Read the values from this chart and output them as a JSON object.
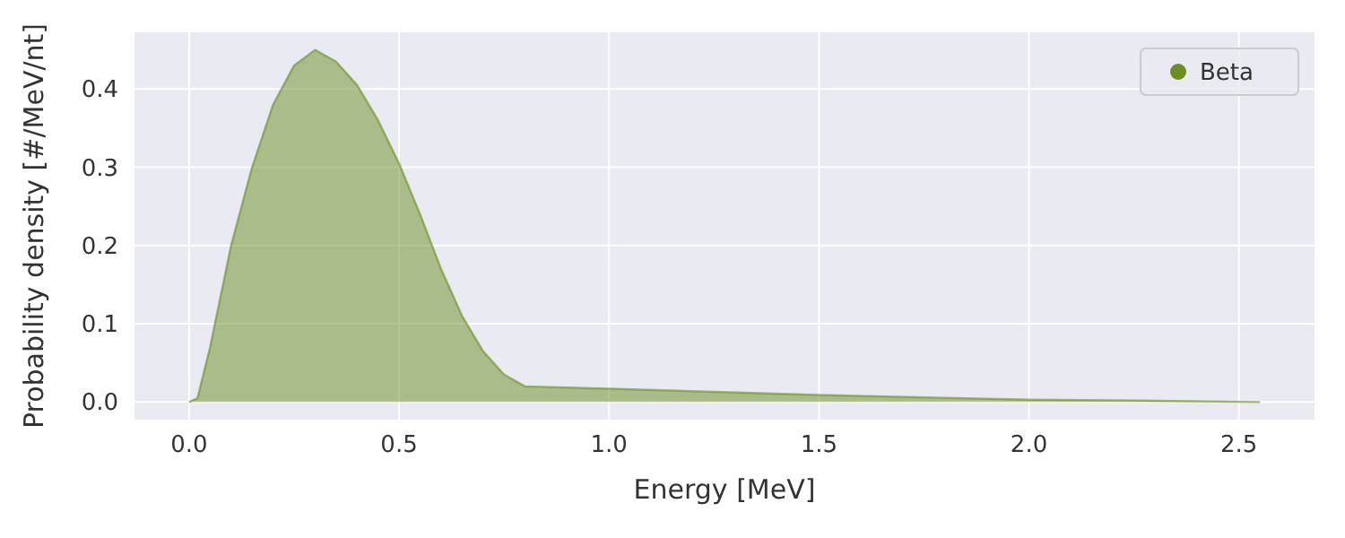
{
  "chart_data": {
    "type": "area",
    "xlabel": "Energy [MeV]",
    "ylabel": "Probability density [#/MeV/nt]",
    "x": [
      0,
      0.02,
      0.05,
      0.1,
      0.15,
      0.2,
      0.25,
      0.3,
      0.35,
      0.4,
      0.45,
      0.5,
      0.55,
      0.6,
      0.65,
      0.7,
      0.75,
      0.8,
      1.0,
      1.25,
      1.5,
      1.75,
      2.0,
      2.25,
      2.55
    ],
    "series": [
      {
        "name": "Beta",
        "color": "#6b8e23",
        "values": [
          0,
          0.005,
          0.07,
          0.2,
          0.3,
          0.38,
          0.43,
          0.45,
          0.435,
          0.405,
          0.36,
          0.305,
          0.24,
          0.17,
          0.11,
          0.065,
          0.035,
          0.02,
          0.017,
          0.013,
          0.009,
          0.006,
          0.003,
          0.002,
          0
        ]
      }
    ],
    "xlim": [
      -0.13,
      2.68
    ],
    "ylim": [
      -0.0225,
      0.4725
    ],
    "xticks": [
      {
        "value": 0,
        "label": "0.0"
      },
      {
        "value": 0.5,
        "label": "0.5"
      },
      {
        "value": 1,
        "label": "1.0"
      },
      {
        "value": 1.5,
        "label": "1.5"
      },
      {
        "value": 2,
        "label": "2.0"
      },
      {
        "value": 2.5,
        "label": "2.5"
      }
    ],
    "yticks": [
      {
        "value": 0,
        "label": "0.0"
      },
      {
        "value": 0.1,
        "label": "0.1"
      },
      {
        "value": 0.2,
        "label": "0.2"
      },
      {
        "value": 0.3,
        "label": "0.3"
      },
      {
        "value": 0.4,
        "label": "0.4"
      }
    ],
    "grid": true,
    "legend": "top right"
  }
}
